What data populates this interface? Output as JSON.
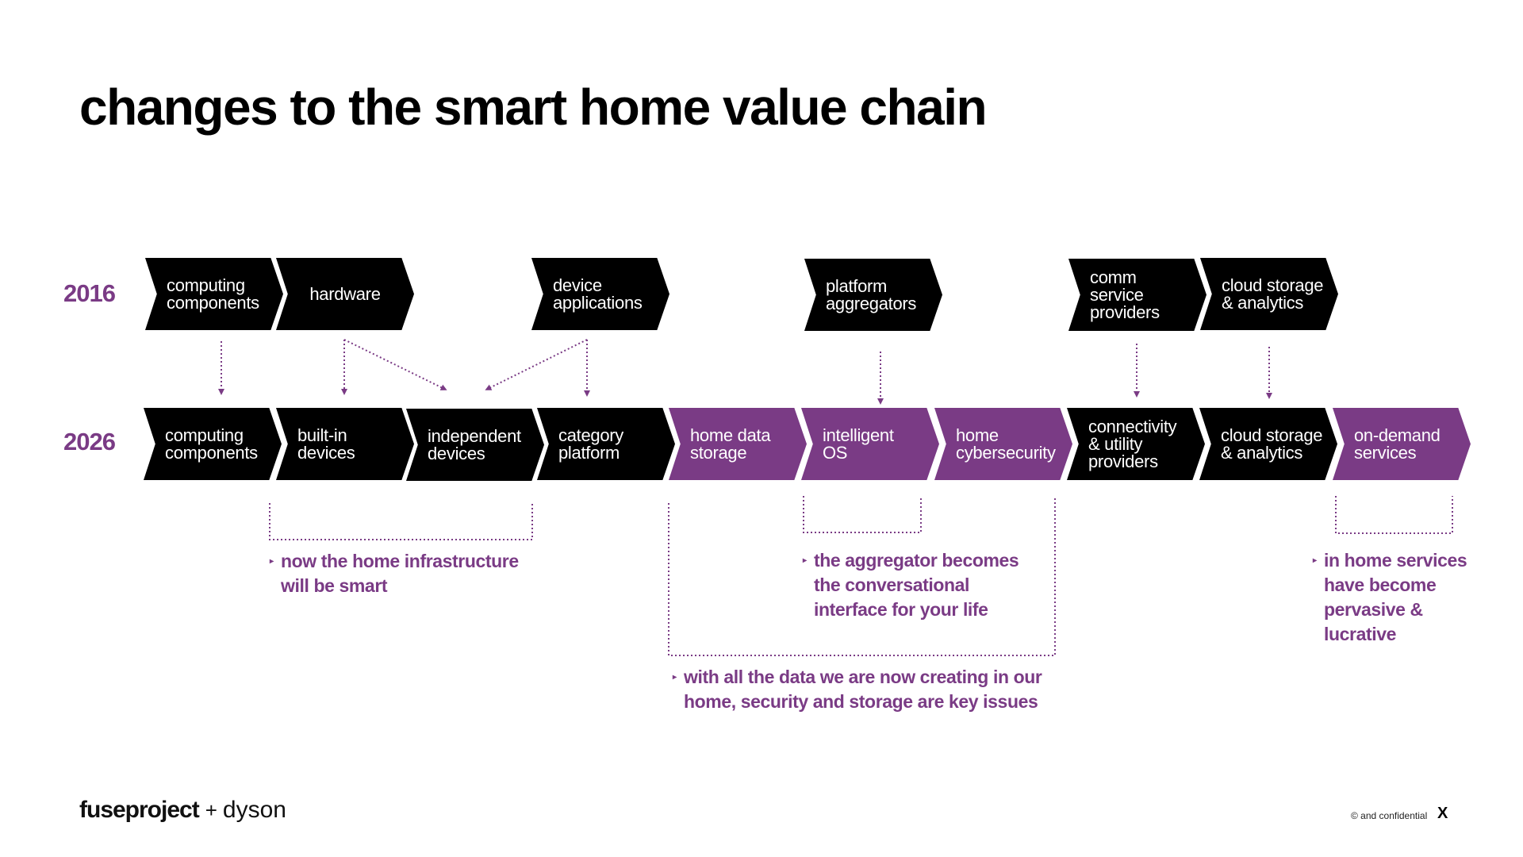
{
  "title": "changes to the smart home value chain",
  "colors": {
    "accent": "#7a3b85",
    "dark": "#000000"
  },
  "rows": {
    "r2016": {
      "year": "2016",
      "items": [
        {
          "label": "computing\ncomponents",
          "color": "black"
        },
        {
          "label": "hardware",
          "color": "black"
        },
        {
          "label": "device\napplications",
          "color": "black"
        },
        {
          "label": "platform\naggregators",
          "color": "black"
        },
        {
          "label": "comm service\nproviders",
          "color": "black"
        },
        {
          "label": "cloud storage\n& analytics",
          "color": "black"
        }
      ]
    },
    "r2026": {
      "year": "2026",
      "items": [
        {
          "label": "computing\ncomponents",
          "color": "black"
        },
        {
          "label": "built-in\ndevices",
          "color": "black"
        },
        {
          "label": "independent\ndevices",
          "color": "black"
        },
        {
          "label": "category\nplatform",
          "color": "black"
        },
        {
          "label": "home data\nstorage",
          "color": "purple"
        },
        {
          "label": "intelligent\nOS",
          "color": "purple"
        },
        {
          "label": "home\ncybersecurity",
          "color": "purple"
        },
        {
          "label": "connectivity\n& utility\nproviders",
          "color": "black"
        },
        {
          "label": "cloud storage\n& analytics",
          "color": "black"
        },
        {
          "label": "on-demand\nservices",
          "color": "purple"
        }
      ]
    }
  },
  "notes": [
    {
      "bullet": "▸",
      "text": "now the home infrastructure\nwill be smart"
    },
    {
      "bullet": "▸",
      "text": "with all the data we are now creating in our\nhome, security and storage are key issues"
    },
    {
      "bullet": "▸",
      "text": "the aggregator becomes\nthe conversational\ninterface for your life"
    },
    {
      "bullet": "▸",
      "text": "in home services\nhave become\npervasive &\nlucrative"
    }
  ],
  "footer": {
    "logo_left": "fuseproject",
    "logo_plus": "+",
    "logo_right": "dyson",
    "copyright": "© and confidential",
    "mark": "X"
  }
}
